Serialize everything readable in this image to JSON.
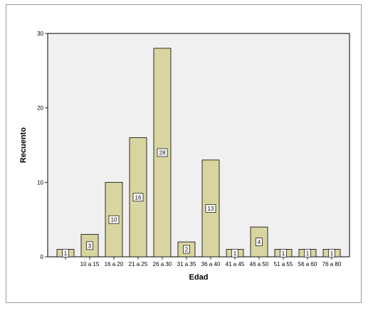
{
  "chart_data": {
    "type": "bar",
    "xlabel": "Edad",
    "ylabel": "Recuento",
    "ylim": [
      0,
      30
    ],
    "yticks": [
      0,
      10,
      20,
      30
    ],
    "categories": [
      "",
      "10 a 15",
      "16 a 20",
      "21 a 25",
      "26 a 30",
      "31 a 35",
      "36 a 40",
      "41 a 45",
      "46 a 50",
      "51 a 55",
      "56 a 60",
      "76 a 80"
    ],
    "values": [
      1,
      3,
      10,
      16,
      28,
      2,
      13,
      1,
      4,
      1,
      1,
      1
    ],
    "data_labels": [
      "1",
      "3",
      "10",
      "16",
      "28",
      "2",
      "13",
      "1",
      "4",
      "1",
      "1",
      "1"
    ],
    "grid": false,
    "bar_color": "#d9d5a0",
    "bar_edge_color": "#000000",
    "plot_background": "#f0f0f0"
  }
}
